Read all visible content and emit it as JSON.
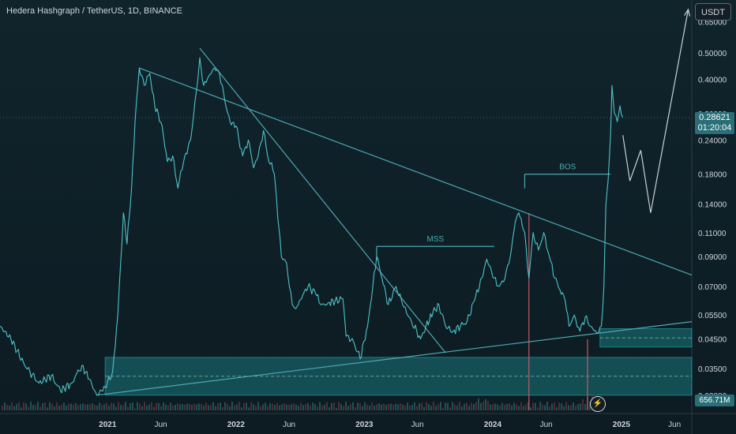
{
  "header": {
    "title": "Hedera Hashgraph / TetherUS, 1D, BINANCE",
    "currency": "USDT"
  },
  "price_tag": {
    "price": "0.28621",
    "countdown": "01:20:04"
  },
  "volume_tag": "656.71M",
  "colors": {
    "price_line": "#4fc3c9",
    "drawing_line": "#4fa8b3",
    "zone_fill": "#22b5b5",
    "axis_text": "#d1d4dc",
    "background": "#0f1d24"
  },
  "icons": {
    "flash": "lightning-icon"
  },
  "chart_data": {
    "type": "line",
    "y_scale": "log",
    "x_range": [
      "2020-03-01",
      "2025-07-20"
    ],
    "ylim": [
      0.024,
      0.78
    ],
    "y_ticks": [
      {
        "label": "0.65000",
        "value": 0.65
      },
      {
        "label": "0.50000",
        "value": 0.5
      },
      {
        "label": "0.40000",
        "value": 0.4
      },
      {
        "label": "0.30000",
        "value": 0.3
      },
      {
        "label": "0.24000",
        "value": 0.24
      },
      {
        "label": "0.18000",
        "value": 0.18
      },
      {
        "label": "0.14000",
        "value": 0.14
      },
      {
        "label": "0.11000",
        "value": 0.11
      },
      {
        "label": "0.09000",
        "value": 0.09
      },
      {
        "label": "0.07000",
        "value": 0.07
      },
      {
        "label": "0.05500",
        "value": 0.055
      },
      {
        "label": "0.04500",
        "value": 0.045
      },
      {
        "label": "0.03500",
        "value": 0.035
      },
      {
        "label": "0.02800",
        "value": 0.028
      }
    ],
    "x_ticks": [
      {
        "label": "2021",
        "date": "2021-01-01"
      },
      {
        "label": "Jun",
        "date": "2021-06-01"
      },
      {
        "label": "2022",
        "date": "2022-01-01"
      },
      {
        "label": "Jun",
        "date": "2022-06-01"
      },
      {
        "label": "2023",
        "date": "2023-01-01"
      },
      {
        "label": "Jun",
        "date": "2023-06-01"
      },
      {
        "label": "2024",
        "date": "2024-01-01"
      },
      {
        "label": "Jun",
        "date": "2024-06-01"
      },
      {
        "label": "2025",
        "date": "2025-01-01"
      },
      {
        "label": "Jun",
        "date": "2025-06-01"
      }
    ],
    "price_series": [
      [
        "2020-03-01",
        0.05
      ],
      [
        "2020-04-01",
        0.045
      ],
      [
        "2020-05-10",
        0.036
      ],
      [
        "2020-06-20",
        0.031
      ],
      [
        "2020-07-25",
        0.033
      ],
      [
        "2020-08-20",
        0.029
      ],
      [
        "2020-09-20",
        0.031
      ],
      [
        "2020-10-20",
        0.036
      ],
      [
        "2020-11-10",
        0.032
      ],
      [
        "2020-12-01",
        0.028
      ],
      [
        "2020-12-25",
        0.03
      ],
      [
        "2021-01-15",
        0.034
      ],
      [
        "2021-01-30",
        0.055
      ],
      [
        "2021-02-15",
        0.13
      ],
      [
        "2021-02-25",
        0.1
      ],
      [
        "2021-03-10",
        0.16
      ],
      [
        "2021-03-20",
        0.28
      ],
      [
        "2021-04-01",
        0.44
      ],
      [
        "2021-04-15",
        0.38
      ],
      [
        "2021-05-01",
        0.42
      ],
      [
        "2021-05-15",
        0.32
      ],
      [
        "2021-05-25",
        0.3
      ],
      [
        "2021-06-05",
        0.27
      ],
      [
        "2021-06-20",
        0.2
      ],
      [
        "2021-07-05",
        0.21
      ],
      [
        "2021-07-20",
        0.16
      ],
      [
        "2021-08-05",
        0.2
      ],
      [
        "2021-08-25",
        0.24
      ],
      [
        "2021-09-10",
        0.36
      ],
      [
        "2021-09-20",
        0.48
      ],
      [
        "2021-10-01",
        0.38
      ],
      [
        "2021-10-15",
        0.41
      ],
      [
        "2021-11-01",
        0.44
      ],
      [
        "2021-11-15",
        0.42
      ],
      [
        "2021-12-01",
        0.33
      ],
      [
        "2021-12-15",
        0.28
      ],
      [
        "2022-01-01",
        0.27
      ],
      [
        "2022-01-20",
        0.21
      ],
      [
        "2022-02-05",
        0.24
      ],
      [
        "2022-02-20",
        0.19
      ],
      [
        "2022-03-05",
        0.21
      ],
      [
        "2022-03-20",
        0.26
      ],
      [
        "2022-04-01",
        0.21
      ],
      [
        "2022-04-20",
        0.18
      ],
      [
        "2022-05-10",
        0.09
      ],
      [
        "2022-05-25",
        0.085
      ],
      [
        "2022-06-10",
        0.06
      ],
      [
        "2022-06-20",
        0.058
      ],
      [
        "2022-07-10",
        0.065
      ],
      [
        "2022-07-25",
        0.07
      ],
      [
        "2022-08-15",
        0.066
      ],
      [
        "2022-09-01",
        0.06
      ],
      [
        "2022-09-20",
        0.061
      ],
      [
        "2022-10-10",
        0.062
      ],
      [
        "2022-11-01",
        0.063
      ],
      [
        "2022-11-10",
        0.046
      ],
      [
        "2022-12-01",
        0.044
      ],
      [
        "2022-12-20",
        0.038
      ],
      [
        "2023-01-10",
        0.05
      ],
      [
        "2023-01-25",
        0.07
      ],
      [
        "2023-02-05",
        0.09
      ],
      [
        "2023-02-20",
        0.075
      ],
      [
        "2023-03-10",
        0.06
      ],
      [
        "2023-04-01",
        0.07
      ],
      [
        "2023-04-20",
        0.06
      ],
      [
        "2023-05-15",
        0.052
      ],
      [
        "2023-06-10",
        0.045
      ],
      [
        "2023-06-25",
        0.05
      ],
      [
        "2023-07-15",
        0.056
      ],
      [
        "2023-08-01",
        0.06
      ],
      [
        "2023-08-20",
        0.05
      ],
      [
        "2023-09-10",
        0.048
      ],
      [
        "2023-10-01",
        0.05
      ],
      [
        "2023-10-20",
        0.052
      ],
      [
        "2023-11-10",
        0.062
      ],
      [
        "2023-12-01",
        0.075
      ],
      [
        "2023-12-15",
        0.088
      ],
      [
        "2024-01-05",
        0.075
      ],
      [
        "2024-01-20",
        0.07
      ],
      [
        "2024-02-05",
        0.075
      ],
      [
        "2024-02-20",
        0.09
      ],
      [
        "2024-03-05",
        0.12
      ],
      [
        "2024-03-15",
        0.13
      ],
      [
        "2024-04-01",
        0.11
      ],
      [
        "2024-04-13",
        0.075
      ],
      [
        "2024-04-25",
        0.11
      ],
      [
        "2024-05-10",
        0.095
      ],
      [
        "2024-05-25",
        0.11
      ],
      [
        "2024-06-10",
        0.09
      ],
      [
        "2024-06-25",
        0.075
      ],
      [
        "2024-07-10",
        0.068
      ],
      [
        "2024-07-25",
        0.062
      ],
      [
        "2024-08-05",
        0.05
      ],
      [
        "2024-08-20",
        0.055
      ],
      [
        "2024-09-05",
        0.048
      ],
      [
        "2024-09-20",
        0.054
      ],
      [
        "2024-10-05",
        0.05
      ],
      [
        "2024-10-25",
        0.047
      ],
      [
        "2024-11-05",
        0.05
      ],
      [
        "2024-11-12",
        0.07
      ],
      [
        "2024-11-18",
        0.14
      ],
      [
        "2024-11-24",
        0.17
      ],
      [
        "2024-12-01",
        0.25
      ],
      [
        "2024-12-05",
        0.38
      ],
      [
        "2024-12-12",
        0.3
      ],
      [
        "2024-12-20",
        0.28
      ],
      [
        "2024-12-28",
        0.32
      ],
      [
        "2025-01-05",
        0.29
      ]
    ],
    "annotations": [
      {
        "label": "MSS",
        "start": "2023-02-05",
        "end": "2024-01-05",
        "level": 0.098
      },
      {
        "label": "BOS",
        "start": "2024-04-01",
        "end": "2024-12-01",
        "level": 0.18
      }
    ],
    "trendlines": [
      {
        "from": [
          "2021-04-01",
          0.44
        ],
        "to": [
          "2025-07-20",
          0.077
        ]
      },
      {
        "from": [
          "2021-09-20",
          0.52
        ],
        "to": [
          "2023-08-20",
          0.04
        ]
      },
      {
        "from": [
          "2020-12-01",
          0.028
        ],
        "to": [
          "2025-07-20",
          0.052
        ]
      }
    ],
    "zones": [
      {
        "from": "2020-12-25",
        "to": "2025-07-20",
        "low": 0.028,
        "high": 0.0385
      },
      {
        "from": "2024-11-01",
        "to": "2025-07-20",
        "low": 0.042,
        "high": 0.049
      }
    ],
    "projection": [
      [
        "2025-01-05",
        0.25
      ],
      [
        "2025-01-25",
        0.17
      ],
      [
        "2025-02-25",
        0.22
      ],
      [
        "2025-03-25",
        0.13
      ],
      [
        "2025-07-10",
        0.72
      ]
    ]
  }
}
